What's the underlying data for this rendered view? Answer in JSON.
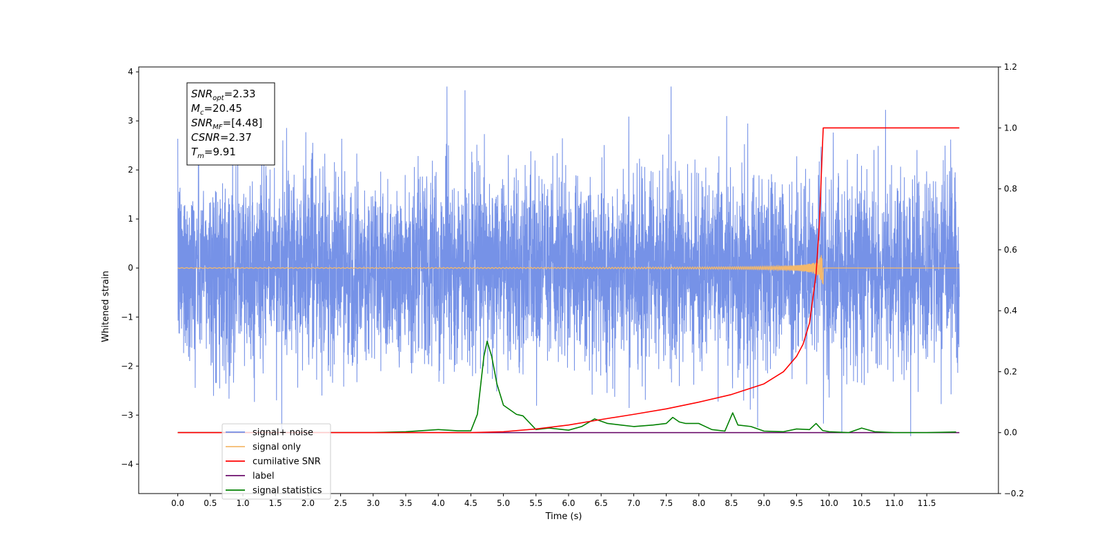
{
  "chart_data": {
    "type": "line",
    "title": "",
    "xlabel": "Time (s)",
    "ylabel": "Whitened strain",
    "y2label": "",
    "xlim": [
      -0.6,
      12.6
    ],
    "ylim": [
      -4.6,
      4.1
    ],
    "y2lim": [
      -0.2,
      1.2
    ],
    "x_ticks": [
      0.0,
      0.5,
      1.0,
      1.5,
      2.0,
      2.5,
      3.0,
      3.5,
      4.0,
      4.5,
      5.0,
      5.5,
      6.0,
      6.5,
      7.0,
      7.5,
      8.0,
      8.5,
      9.0,
      9.5,
      10.0,
      10.5,
      11.0,
      11.5
    ],
    "x_tick_labels": [
      "0.0",
      "0.5",
      "1.0",
      "1.5",
      "2.0",
      "2.5",
      "3.0",
      "3.5",
      "4.0",
      "4.5",
      "5.0",
      "5.5",
      "6.0",
      "6.5",
      "7.0",
      "7.5",
      "8.0",
      "8.5",
      "9.0",
      "9.5",
      "10.0",
      "10.5",
      "11.0",
      "11.5"
    ],
    "y_ticks": [
      4,
      3,
      2,
      1,
      0,
      -1,
      -2,
      -3,
      -4
    ],
    "y_tick_labels": [
      "4",
      "3",
      "2",
      "1",
      "0",
      "−1",
      "−2",
      "−3",
      "−4"
    ],
    "y2_ticks": [
      1.2,
      1.0,
      0.8,
      0.6,
      0.4,
      0.2,
      0.0,
      -0.2
    ],
    "y2_tick_labels": [
      "1.2",
      "1.0",
      "0.8",
      "0.6",
      "0.4",
      "0.2",
      "0.0",
      "−0.2"
    ],
    "grid": false,
    "legend_position": "bottom-left",
    "series": [
      {
        "name": "signal+ noise",
        "color": "#6f8ce6",
        "axis": "left",
        "x_range": [
          0.0,
          12.0
        ],
        "envelope": [
          2.4,
          -2.4
        ],
        "noise": true
      },
      {
        "name": "signal only",
        "color": "#f5b96b",
        "axis": "left",
        "x_range": [
          0.0,
          12.0
        ],
        "chirp_end": 9.91,
        "peak_amplitude": 0.5
      },
      {
        "name": "cumilative SNR",
        "color": "#ff0000",
        "axis": "right",
        "x": [
          0.0,
          4.5,
          5.0,
          5.5,
          6.0,
          6.5,
          7.0,
          7.5,
          8.0,
          8.5,
          9.0,
          9.3,
          9.5,
          9.6,
          9.7,
          9.8,
          9.85,
          9.9,
          9.91,
          12.0
        ],
        "y": [
          0.0,
          0.0,
          0.003,
          0.012,
          0.025,
          0.043,
          0.06,
          0.078,
          0.1,
          0.125,
          0.16,
          0.2,
          0.25,
          0.29,
          0.36,
          0.52,
          0.68,
          0.95,
          1.0,
          1.0
        ]
      },
      {
        "name": "label",
        "color": "#6b0e6b",
        "axis": "right",
        "x": [
          0.0,
          12.0
        ],
        "y": [
          0.0,
          0.0
        ]
      },
      {
        "name": "signal statistics",
        "color": "#008000",
        "axis": "right",
        "x": [
          0.0,
          3.0,
          3.5,
          4.0,
          4.3,
          4.5,
          4.6,
          4.7,
          4.75,
          4.82,
          4.9,
          5.0,
          5.1,
          5.2,
          5.3,
          5.5,
          5.7,
          6.0,
          6.2,
          6.4,
          6.6,
          6.8,
          7.0,
          7.3,
          7.5,
          7.6,
          7.7,
          7.8,
          8.0,
          8.2,
          8.4,
          8.52,
          8.6,
          8.8,
          9.0,
          9.3,
          9.5,
          9.7,
          9.8,
          9.9,
          10.0,
          10.3,
          10.5,
          10.7,
          11.0,
          11.5,
          11.95
        ],
        "y": [
          0.0,
          0.0,
          0.003,
          0.01,
          0.006,
          0.006,
          0.06,
          0.25,
          0.3,
          0.25,
          0.16,
          0.09,
          0.075,
          0.06,
          0.055,
          0.01,
          0.015,
          0.008,
          0.02,
          0.045,
          0.03,
          0.025,
          0.02,
          0.025,
          0.03,
          0.05,
          0.035,
          0.03,
          0.03,
          0.01,
          0.005,
          0.065,
          0.025,
          0.02,
          0.005,
          0.003,
          0.012,
          0.01,
          0.03,
          0.007,
          0.003,
          0.0,
          0.015,
          0.003,
          0.0,
          0.0,
          0.002
        ]
      }
    ],
    "annotation": {
      "lines": [
        {
          "label": "SNR",
          "sub": "opt",
          "value": "=2.33"
        },
        {
          "label": "M",
          "sub": "c",
          "value": "=20.45"
        },
        {
          "label": "SNR",
          "sub": "MF",
          "value": "=[4.48]"
        },
        {
          "label": "CSNR",
          "sub": "",
          "value": "=2.37"
        },
        {
          "label": "T",
          "sub": "m",
          "value": "=9.91"
        }
      ]
    },
    "legend": [
      "signal+ noise",
      "signal only",
      "cumilative SNR",
      "label",
      "signal statistics"
    ]
  }
}
